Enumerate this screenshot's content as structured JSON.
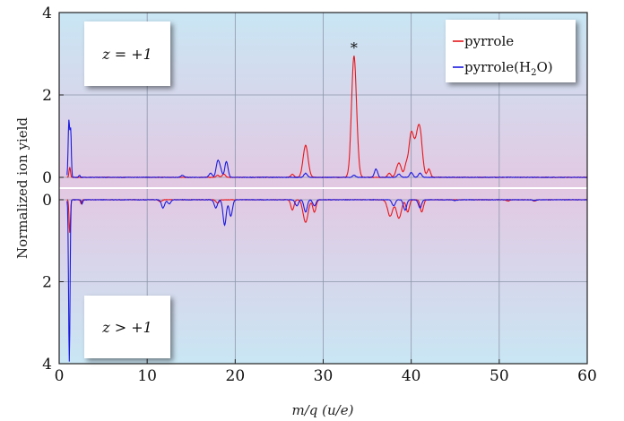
{
  "chart_data": {
    "type": "line",
    "xlabel": "m/q (u/e)",
    "ylabel": "Normalized ion yield",
    "xlim": [
      0,
      60
    ],
    "x_ticks": [
      "0",
      "10",
      "20",
      "30",
      "40",
      "50",
      "60"
    ],
    "x_tick_values": [
      0,
      10,
      20,
      30,
      40,
      50,
      60
    ],
    "grid": true,
    "legend_placement": "top-right",
    "colors": {
      "pyrrole": "#e8161b",
      "pyrrole_h2o": "#1a1ae0"
    },
    "top_panel": {
      "annotation": "z = +1",
      "ylim": [
        0,
        4
      ],
      "y_ticks": [
        "0",
        "2",
        "4"
      ],
      "y_tick_values": [
        0,
        2,
        4
      ],
      "star_marker": {
        "label": "*",
        "x": 33.5,
        "y": 3.2
      },
      "series": [
        {
          "name": "pyrrole",
          "color": "#e8161b",
          "peaks": [
            {
              "x": 1.2,
              "y": 0.25
            },
            {
              "x": 18.0,
              "y": 0.05
            },
            {
              "x": 18.7,
              "y": 0.08
            },
            {
              "x": 26.5,
              "y": 0.08
            },
            {
              "x": 28.0,
              "y": 0.78
            },
            {
              "x": 33.5,
              "y": 2.95
            },
            {
              "x": 34.0,
              "y": 0.08
            },
            {
              "x": 37.5,
              "y": 0.1
            },
            {
              "x": 38.6,
              "y": 0.35
            },
            {
              "x": 39.4,
              "y": 0.25
            },
            {
              "x": 40.0,
              "y": 1.05
            },
            {
              "x": 40.6,
              "y": 0.6
            },
            {
              "x": 41.0,
              "y": 1.0
            },
            {
              "x": 42.0,
              "y": 0.2
            }
          ]
        },
        {
          "name": "pyrrole(H2O)",
          "color": "#1a1ae0",
          "peaks": [
            {
              "x": 1.1,
              "y": 1.35
            },
            {
              "x": 1.3,
              "y": 1.15
            },
            {
              "x": 2.3,
              "y": 0.05
            },
            {
              "x": 14.0,
              "y": 0.05
            },
            {
              "x": 17.2,
              "y": 0.1
            },
            {
              "x": 18.0,
              "y": 0.35
            },
            {
              "x": 18.3,
              "y": 0.2
            },
            {
              "x": 19.0,
              "y": 0.38
            },
            {
              "x": 28.0,
              "y": 0.1
            },
            {
              "x": 33.5,
              "y": 0.05
            },
            {
              "x": 36.0,
              "y": 0.2
            },
            {
              "x": 38.6,
              "y": 0.08
            },
            {
              "x": 40.0,
              "y": 0.12
            },
            {
              "x": 41.0,
              "y": 0.1
            }
          ]
        }
      ]
    },
    "bottom_panel": {
      "annotation": "z > +1",
      "ylim": [
        0,
        4
      ],
      "y_ticks": [
        "0",
        "2",
        "4"
      ],
      "y_tick_values": [
        0,
        2,
        4
      ],
      "series": [
        {
          "name": "pyrrole",
          "color": "#e8161b",
          "peaks": [
            {
              "x": 1.2,
              "y": 0.8
            },
            {
              "x": 2.5,
              "y": 0.1
            },
            {
              "x": 11.5,
              "y": 0.05
            },
            {
              "x": 18.0,
              "y": 0.08
            },
            {
              "x": 26.5,
              "y": 0.25
            },
            {
              "x": 28.0,
              "y": 0.55
            },
            {
              "x": 29.0,
              "y": 0.3
            },
            {
              "x": 37.6,
              "y": 0.4
            },
            {
              "x": 38.6,
              "y": 0.45
            },
            {
              "x": 39.6,
              "y": 0.3
            },
            {
              "x": 41.2,
              "y": 0.3
            },
            {
              "x": 51.0,
              "y": 0.03
            },
            {
              "x": 54.0,
              "y": 0.03
            }
          ]
        },
        {
          "name": "pyrrole(H2O)",
          "color": "#1a1ae0",
          "peaks": [
            {
              "x": 1.15,
              "y": 3.95
            },
            {
              "x": 2.6,
              "y": 0.1
            },
            {
              "x": 11.8,
              "y": 0.2
            },
            {
              "x": 12.5,
              "y": 0.1
            },
            {
              "x": 17.8,
              "y": 0.2
            },
            {
              "x": 18.8,
              "y": 0.62
            },
            {
              "x": 19.5,
              "y": 0.4
            },
            {
              "x": 27.0,
              "y": 0.15
            },
            {
              "x": 28.0,
              "y": 0.3
            },
            {
              "x": 29.0,
              "y": 0.15
            },
            {
              "x": 38.0,
              "y": 0.15
            },
            {
              "x": 39.3,
              "y": 0.25
            },
            {
              "x": 41.0,
              "y": 0.2
            },
            {
              "x": 45.0,
              "y": 0.02
            },
            {
              "x": 54.0,
              "y": 0.02
            }
          ]
        }
      ]
    },
    "legend": {
      "entries": [
        {
          "label": "pyrrole",
          "color": "#e8161b"
        },
        {
          "label_main": "pyrrole(H",
          "label_sub": "2",
          "label_tail": "O)",
          "color": "#1a1ae0"
        }
      ]
    }
  }
}
